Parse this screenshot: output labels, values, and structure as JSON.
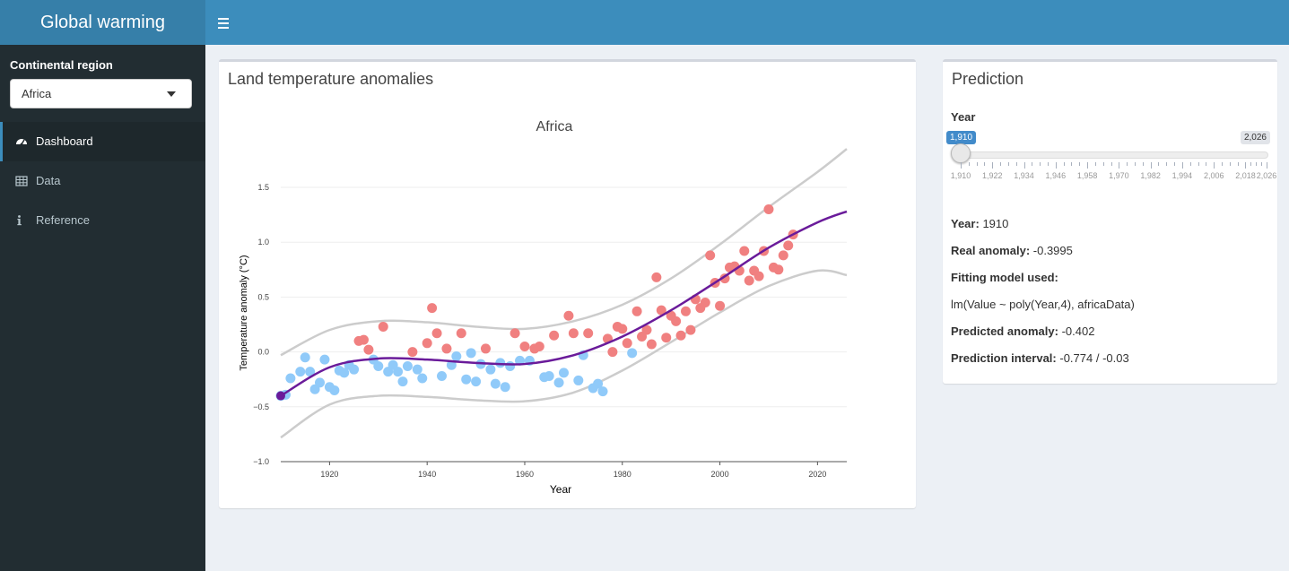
{
  "header": {
    "title": "Global warming"
  },
  "sidebar": {
    "region_label": "Continental region",
    "region_value": "Africa",
    "items": [
      {
        "label": "Dashboard",
        "icon": "dashboard-icon"
      },
      {
        "label": "Data",
        "icon": "table-icon"
      },
      {
        "label": "Reference",
        "icon": "info-icon"
      }
    ]
  },
  "plot_box": {
    "title": "Land temperature anomalies"
  },
  "chart_data": {
    "type": "scatter",
    "title": "Africa",
    "xlabel": "Year",
    "ylabel": "Temperature anomaly (°C)",
    "xlim": [
      1910,
      2026
    ],
    "ylim": [
      -1.0,
      1.5
    ],
    "x_ticks": [
      1920,
      1940,
      1960,
      1980,
      2000,
      2020
    ],
    "y_ticks": [
      -1.0,
      -0.5,
      0.0,
      0.5,
      1.0,
      1.5
    ],
    "y_tick_labels": [
      "−1.0",
      "−0.5",
      "0.0",
      "0.5",
      "1.0",
      "1.5"
    ],
    "colors": {
      "below": "#90caf9",
      "above": "#f08080",
      "fit": "#6a1b9a",
      "interval": "#cccccc"
    },
    "points": [
      [
        1910,
        -0.4
      ],
      [
        1911,
        -0.39
      ],
      [
        1912,
        -0.24
      ],
      [
        1914,
        -0.18
      ],
      [
        1915,
        -0.05
      ],
      [
        1916,
        -0.18
      ],
      [
        1917,
        -0.34
      ],
      [
        1918,
        -0.28
      ],
      [
        1919,
        -0.07
      ],
      [
        1920,
        -0.32
      ],
      [
        1921,
        -0.35
      ],
      [
        1922,
        -0.17
      ],
      [
        1923,
        -0.19
      ],
      [
        1924,
        -0.12
      ],
      [
        1925,
        -0.16
      ],
      [
        1926,
        0.1
      ],
      [
        1927,
        0.11
      ],
      [
        1928,
        0.02
      ],
      [
        1929,
        -0.07
      ],
      [
        1930,
        -0.13
      ],
      [
        1931,
        0.23
      ],
      [
        1932,
        -0.18
      ],
      [
        1933,
        -0.12
      ],
      [
        1934,
        -0.18
      ],
      [
        1935,
        -0.27
      ],
      [
        1936,
        -0.13
      ],
      [
        1937,
        0.0
      ],
      [
        1938,
        -0.16
      ],
      [
        1939,
        -0.24
      ],
      [
        1940,
        0.08
      ],
      [
        1941,
        0.4
      ],
      [
        1942,
        0.17
      ],
      [
        1943,
        -0.22
      ],
      [
        1944,
        0.03
      ],
      [
        1945,
        -0.12
      ],
      [
        1946,
        -0.04
      ],
      [
        1947,
        0.17
      ],
      [
        1948,
        -0.25
      ],
      [
        1949,
        -0.01
      ],
      [
        1950,
        -0.27
      ],
      [
        1951,
        -0.11
      ],
      [
        1952,
        0.03
      ],
      [
        1953,
        -0.16
      ],
      [
        1954,
        -0.29
      ],
      [
        1955,
        -0.1
      ],
      [
        1956,
        -0.32
      ],
      [
        1957,
        -0.13
      ],
      [
        1958,
        0.17
      ],
      [
        1959,
        -0.08
      ],
      [
        1960,
        0.05
      ],
      [
        1961,
        -0.08
      ],
      [
        1962,
        0.03
      ],
      [
        1963,
        0.05
      ],
      [
        1964,
        -0.23
      ],
      [
        1965,
        -0.22
      ],
      [
        1966,
        0.15
      ],
      [
        1967,
        -0.28
      ],
      [
        1968,
        -0.19
      ],
      [
        1969,
        0.33
      ],
      [
        1970,
        0.17
      ],
      [
        1971,
        -0.26
      ],
      [
        1972,
        -0.03
      ],
      [
        1973,
        0.17
      ],
      [
        1974,
        -0.33
      ],
      [
        1975,
        -0.29
      ],
      [
        1976,
        -0.36
      ],
      [
        1977,
        0.12
      ],
      [
        1978,
        0.0
      ],
      [
        1979,
        0.23
      ],
      [
        1980,
        0.21
      ],
      [
        1981,
        0.08
      ],
      [
        1982,
        -0.01
      ],
      [
        1983,
        0.37
      ],
      [
        1984,
        0.14
      ],
      [
        1985,
        0.2
      ],
      [
        1986,
        0.07
      ],
      [
        1987,
        0.68
      ],
      [
        1988,
        0.38
      ],
      [
        1989,
        0.13
      ],
      [
        1990,
        0.33
      ],
      [
        1991,
        0.28
      ],
      [
        1992,
        0.15
      ],
      [
        1993,
        0.37
      ],
      [
        1994,
        0.2
      ],
      [
        1995,
        0.48
      ],
      [
        1996,
        0.4
      ],
      [
        1997,
        0.45
      ],
      [
        1998,
        0.88
      ],
      [
        1999,
        0.63
      ],
      [
        2000,
        0.42
      ],
      [
        2001,
        0.67
      ],
      [
        2002,
        0.77
      ],
      [
        2003,
        0.78
      ],
      [
        2004,
        0.74
      ],
      [
        2005,
        0.92
      ],
      [
        2006,
        0.65
      ],
      [
        2007,
        0.74
      ],
      [
        2008,
        0.69
      ],
      [
        2009,
        0.92
      ],
      [
        2010,
        1.3
      ],
      [
        2011,
        0.77
      ],
      [
        2012,
        0.75
      ],
      [
        2013,
        0.88
      ],
      [
        2014,
        0.97
      ],
      [
        2015,
        1.07
      ]
    ],
    "fit": [
      [
        1910,
        -0.4
      ],
      [
        1920,
        -0.14
      ],
      [
        1930,
        -0.06
      ],
      [
        1940,
        -0.07
      ],
      [
        1950,
        -0.1
      ],
      [
        1960,
        -0.11
      ],
      [
        1970,
        -0.03
      ],
      [
        1980,
        0.14
      ],
      [
        1990,
        0.38
      ],
      [
        2000,
        0.66
      ],
      [
        2010,
        0.95
      ],
      [
        2020,
        1.18
      ],
      [
        2026,
        1.28
      ]
    ],
    "upper": [
      [
        1910,
        -0.03
      ],
      [
        1920,
        0.2
      ],
      [
        1930,
        0.28
      ],
      [
        1940,
        0.27
      ],
      [
        1950,
        0.23
      ],
      [
        1960,
        0.21
      ],
      [
        1970,
        0.28
      ],
      [
        1980,
        0.43
      ],
      [
        1990,
        0.67
      ],
      [
        2000,
        0.98
      ],
      [
        2010,
        1.32
      ],
      [
        2020,
        1.64
      ],
      [
        2026,
        1.85
      ]
    ],
    "lower": [
      [
        1910,
        -0.78
      ],
      [
        1920,
        -0.48
      ],
      [
        1930,
        -0.4
      ],
      [
        1940,
        -0.41
      ],
      [
        1950,
        -0.44
      ],
      [
        1960,
        -0.45
      ],
      [
        1970,
        -0.37
      ],
      [
        1980,
        -0.17
      ],
      [
        1990,
        0.09
      ],
      [
        2000,
        0.36
      ],
      [
        2010,
        0.6
      ],
      [
        2020,
        0.74
      ],
      [
        2026,
        0.7
      ]
    ],
    "highlight": [
      1910,
      -0.4
    ]
  },
  "prediction": {
    "title": "Prediction",
    "slider": {
      "label": "Year",
      "min_label": "1,910",
      "max_label": "2,026",
      "value": 1910,
      "min": 1910,
      "max": 2026,
      "grid_labels": [
        "1,910",
        "1,922",
        "1,934",
        "1,946",
        "1,958",
        "1,970",
        "1,982",
        "1,994",
        "2,006",
        "2,018",
        "2,026"
      ]
    },
    "year_label": "Year:",
    "year_value": "1910",
    "real_label": "Real anomaly:",
    "real_value": "-0.3995",
    "model_label": "Fitting model used:",
    "model_value": "lm(Value ~ poly(Year,4), africaData)",
    "pred_label": "Predicted anomaly:",
    "pred_value": "-0.402",
    "interval_label": "Prediction interval:",
    "interval_value": "-0.774 / -0.03"
  }
}
